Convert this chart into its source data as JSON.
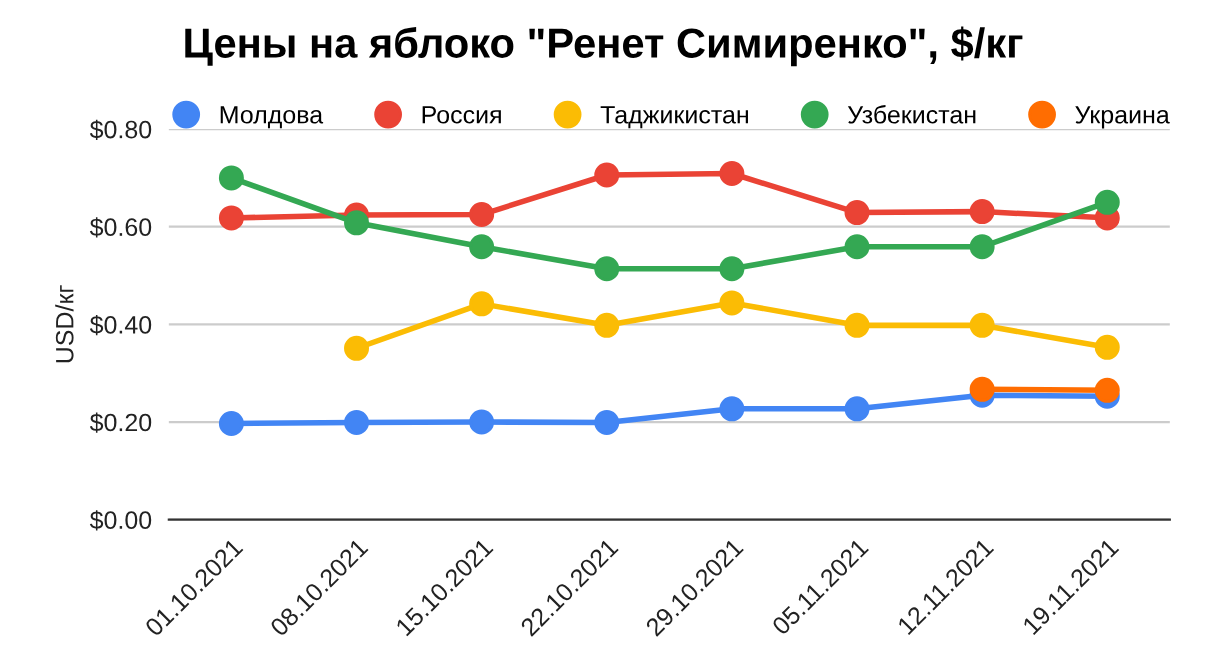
{
  "chart_data": {
    "type": "line",
    "title": "Цены на яблоко \"Ренет Симиренко\", $/кг",
    "ylabel": "USD/кг",
    "categories": [
      "01.10.2021",
      "08.10.2021",
      "15.10.2021",
      "22.10.2021",
      "29.10.2021",
      "05.11.2021",
      "12.11.2021",
      "19.11.2021"
    ],
    "series": [
      {
        "name": "Молдова",
        "color": "#4285f4",
        "values": [
          0.197,
          0.199,
          0.2,
          0.199,
          0.227,
          0.227,
          0.255,
          0.253
        ]
      },
      {
        "name": "Россия",
        "color": "#ea4335",
        "values": [
          0.618,
          0.624,
          0.625,
          0.706,
          0.709,
          0.629,
          0.631,
          0.618
        ]
      },
      {
        "name": "Таджикистан",
        "color": "#fbbc04",
        "values": [
          null,
          0.351,
          0.442,
          0.398,
          0.444,
          0.398,
          0.398,
          0.353
        ]
      },
      {
        "name": "Узбекистан",
        "color": "#34a853",
        "values": [
          0.7,
          0.608,
          0.559,
          0.514,
          0.514,
          0.559,
          0.559,
          0.65
        ]
      },
      {
        "name": "Украина",
        "color": "#ff6d01",
        "values": [
          null,
          null,
          null,
          null,
          null,
          null,
          0.267,
          0.265
        ]
      }
    ],
    "ylim": [
      0,
      0.8
    ],
    "yticks": [
      {
        "value": 0,
        "label": "$0.00"
      },
      {
        "value": 0.2,
        "label": "$0.20"
      },
      {
        "value": 0.4,
        "label": "$0.40"
      },
      {
        "value": 0.6,
        "label": "$0.60"
      },
      {
        "value": 0.8,
        "label": "$0.80"
      }
    ],
    "grid": "y",
    "legend": "top left",
    "marker": "circle",
    "line_style": "solid"
  }
}
